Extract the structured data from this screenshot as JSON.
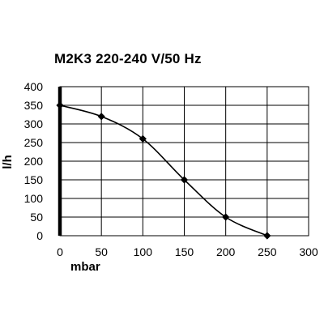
{
  "chart_data": {
    "type": "line",
    "title": "M2K3 220-240 V/50 Hz",
    "xlabel": "mbar",
    "ylabel": "l/h",
    "x": [
      0,
      50,
      100,
      150,
      200,
      250
    ],
    "series": [
      {
        "values": [
          350,
          320,
          260,
          150,
          50,
          0
        ]
      }
    ],
    "xlim": [
      0,
      300
    ],
    "ylim": [
      0,
      400
    ],
    "xticks": [
      "0",
      "50",
      "100",
      "150",
      "200",
      "250",
      "300"
    ],
    "yticks": [
      "0",
      "50",
      "100",
      "150",
      "200",
      "250",
      "300",
      "350",
      "400"
    ],
    "grid": true,
    "legend": "none",
    "colors": {
      "line": "#000000",
      "grid": "#000000",
      "zero_axis": "#000000"
    }
  }
}
